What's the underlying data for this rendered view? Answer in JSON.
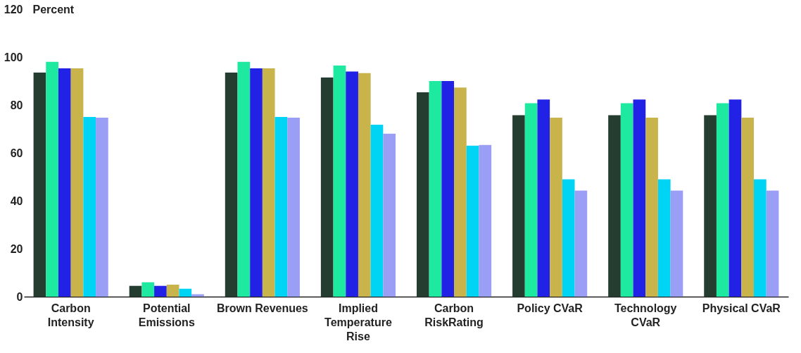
{
  "chart_data": {
    "type": "bar",
    "ylabel": "Percent",
    "categories": [
      "Carbon Intensity",
      "Potential Emissions",
      "Brown Revenues",
      "Implied Temperature Rise",
      "Carbon RiskRating",
      "Policy CVaR",
      "Technology CVaR",
      "Physical CVaR"
    ],
    "ylim": [
      0,
      120
    ],
    "yticks": [
      0,
      20,
      40,
      60,
      80,
      100,
      120
    ],
    "grid": false,
    "legend": false,
    "series": [
      {
        "color": "#253d30",
        "values": [
          93.5,
          4.5,
          93.5,
          91.5,
          85.3,
          75.7,
          75.7,
          75.7
        ]
      },
      {
        "color": "#1de9a0",
        "values": [
          98,
          6,
          98,
          96.5,
          90,
          80.7,
          80.7,
          80.7
        ]
      },
      {
        "color": "#2222e6",
        "values": [
          95.3,
          4.5,
          95.3,
          94,
          90,
          82.3,
          82.3,
          82.3
        ]
      },
      {
        "color": "#c8b44a",
        "values": [
          95.3,
          5,
          95.3,
          93.3,
          87.3,
          74.7,
          74.7,
          74.7
        ]
      },
      {
        "color": "#00d4f5",
        "values": [
          75,
          3.3,
          75,
          71.8,
          63,
          49,
          49,
          49
        ]
      },
      {
        "color": "#9b9ef5",
        "values": [
          74.7,
          1,
          74.7,
          68,
          63.3,
          44.3,
          44.3,
          44.3
        ]
      }
    ]
  }
}
